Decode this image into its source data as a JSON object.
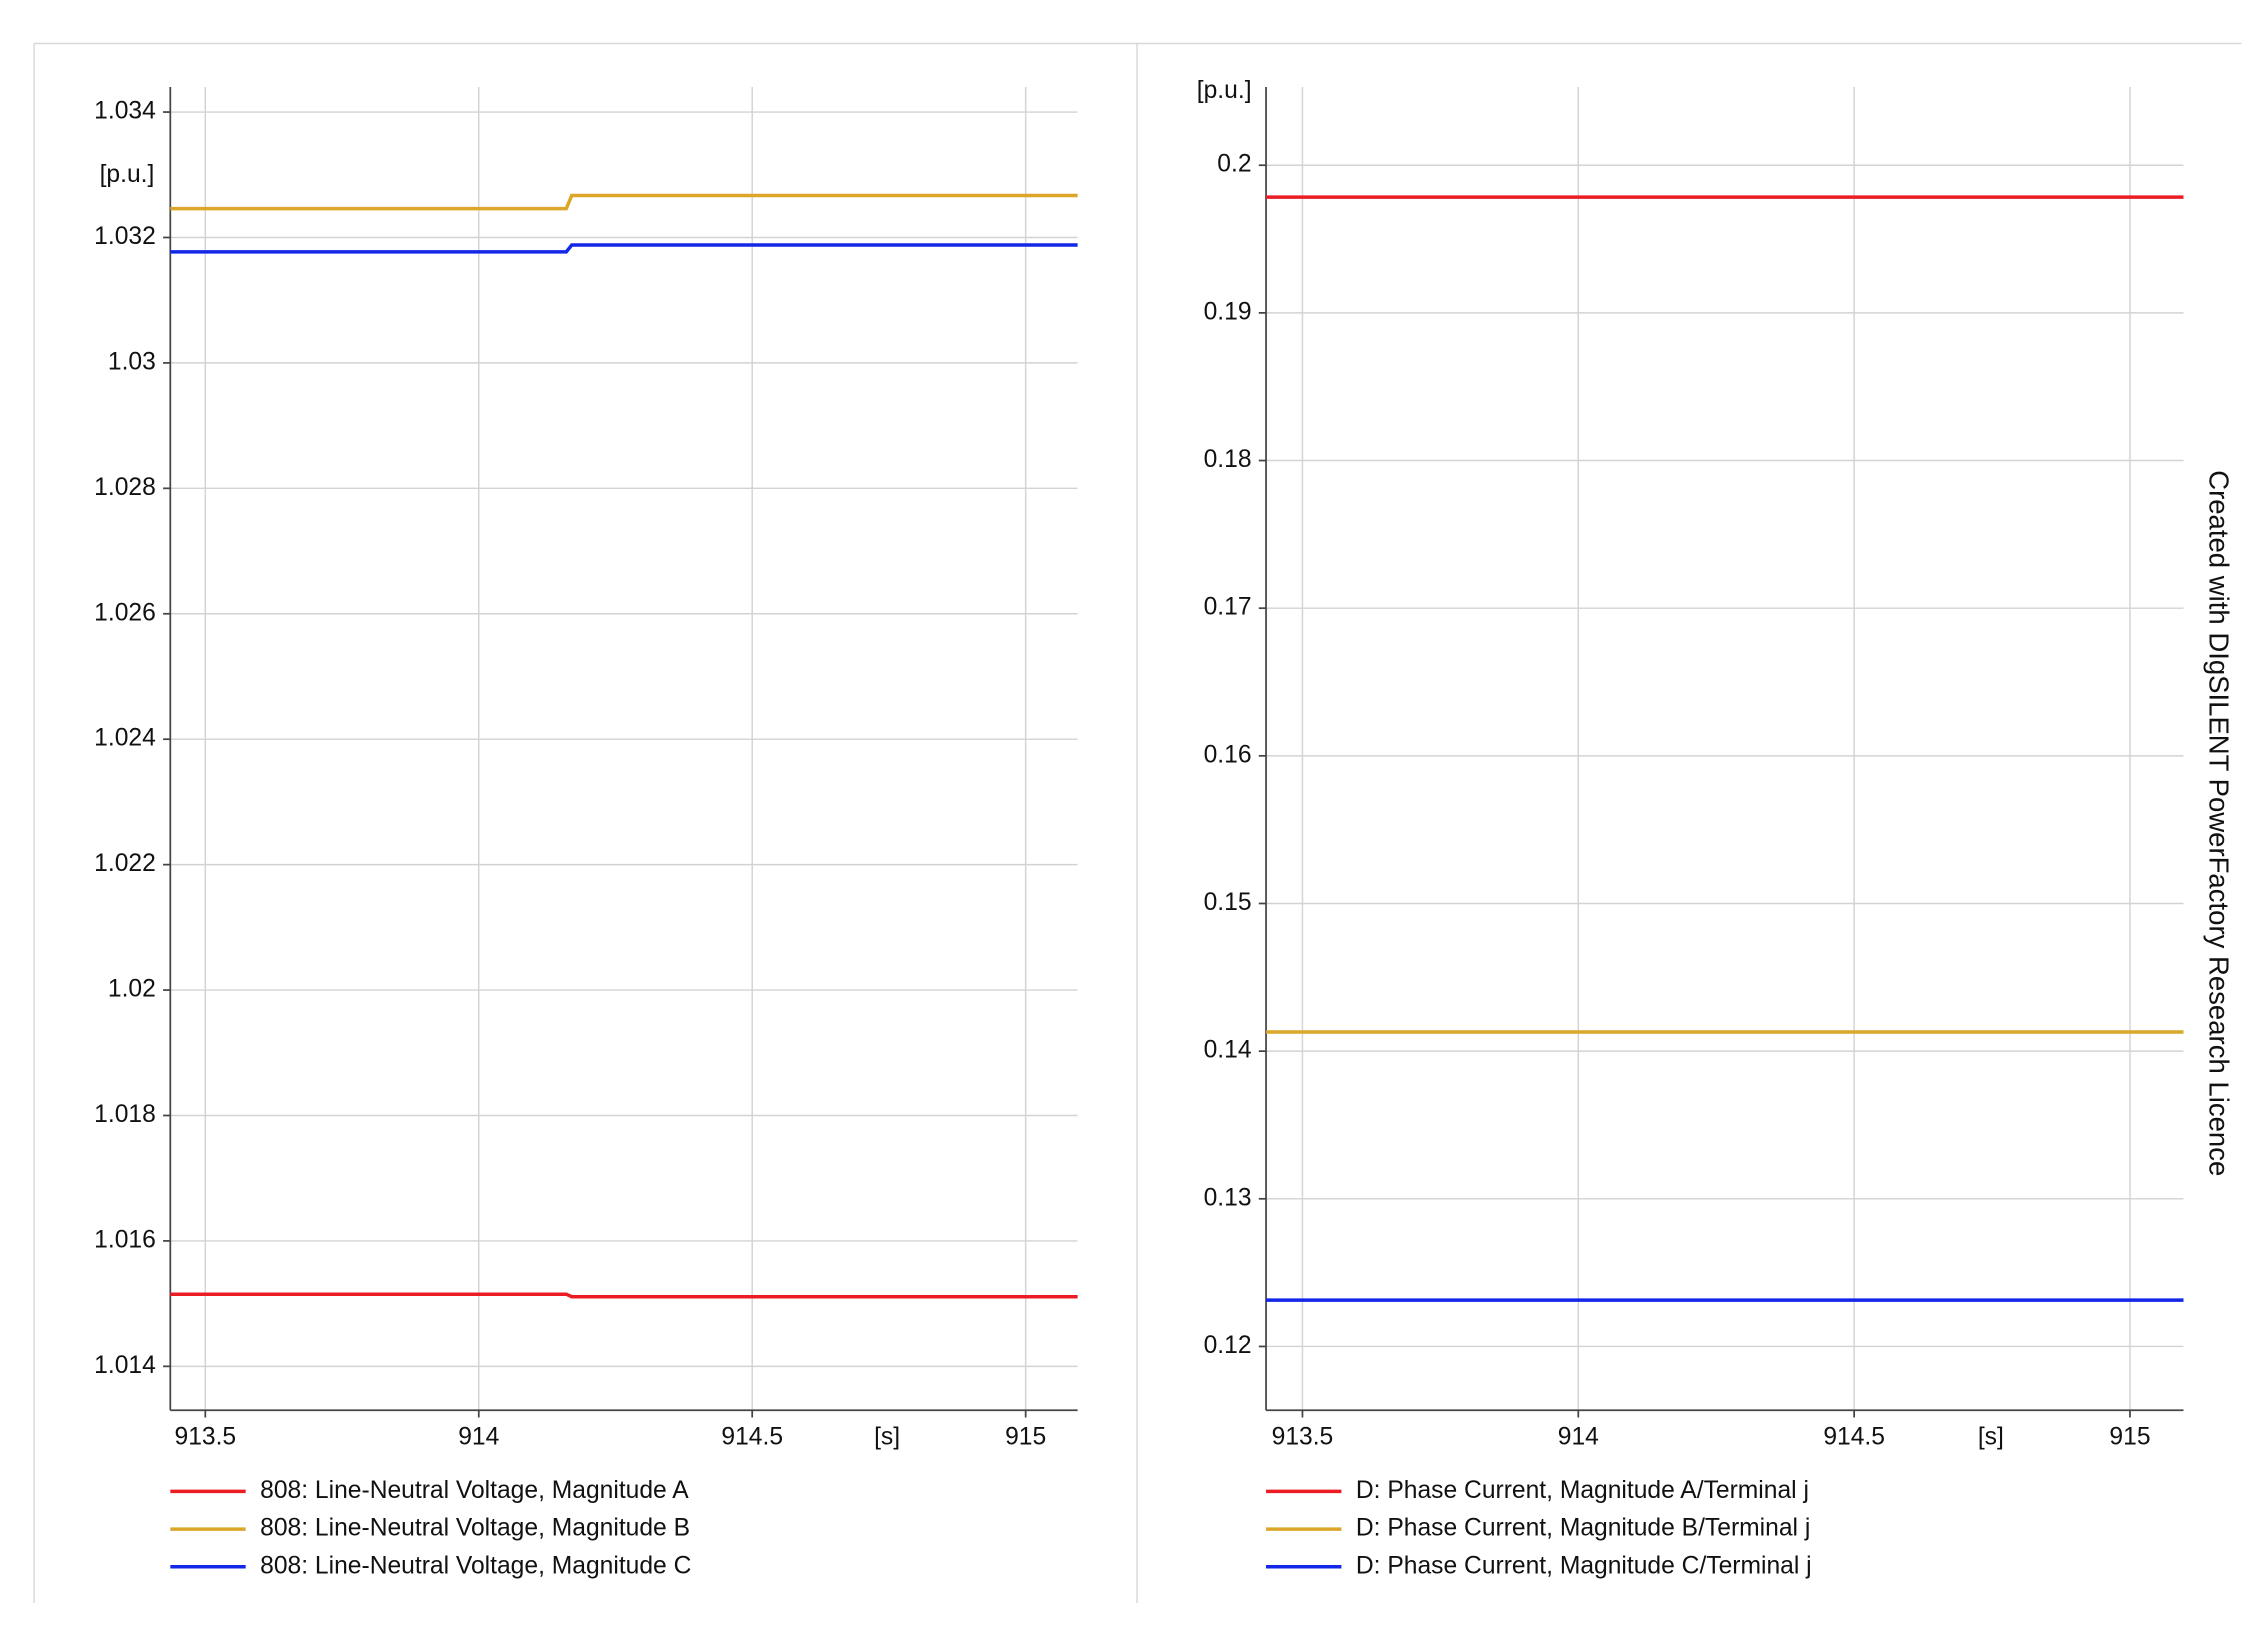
{
  "watermark": "Created with DIgSILENT PowerFactory Research Licence",
  "chart_data": [
    {
      "type": "line",
      "ylabel": "[p.u.]",
      "xlabel": "[s]",
      "x": [
        913.436,
        914.16,
        914.17,
        915.095
      ],
      "xlim": [
        913.436,
        915.095
      ],
      "xticks": [
        913.5,
        914,
        914.5,
        915
      ],
      "ylim": [
        1.0133,
        1.0344
      ],
      "yticks": [
        1.014,
        1.016,
        1.018,
        1.02,
        1.022,
        1.024,
        1.026,
        1.028,
        1.03,
        1.032,
        1.034
      ],
      "grid": true,
      "legend": "bottom",
      "series": [
        {
          "name": "808: Line-Neutral Voltage, Magnitude A",
          "color": "#ec1c24",
          "values": [
            1.01515,
            1.01515,
            1.01511,
            1.01511
          ]
        },
        {
          "name": "808: Line-Neutral Voltage, Magnitude B",
          "color": "#dba629",
          "values": [
            1.03246,
            1.03246,
            1.03267,
            1.03267
          ]
        },
        {
          "name": "808: Line-Neutral Voltage, Magnitude C",
          "color": "#1327e8",
          "values": [
            1.03177,
            1.03177,
            1.03188,
            1.03188
          ]
        }
      ]
    },
    {
      "type": "line",
      "ylabel": "[p.u.]",
      "xlabel": "[s]",
      "x": [
        913.434,
        915.097
      ],
      "xlim": [
        913.434,
        915.097
      ],
      "xticks": [
        913.5,
        914,
        914.5,
        915
      ],
      "ylim": [
        0.11568,
        0.2053
      ],
      "yticks": [
        0.12,
        0.13,
        0.14,
        0.15,
        0.16,
        0.17,
        0.18,
        0.19,
        0.2
      ],
      "grid": true,
      "legend": "bottom",
      "series": [
        {
          "name": "D: Phase Current, Magnitude A/Terminal j",
          "color": "#ec1c24",
          "values": [
            0.19784,
            0.19784
          ]
        },
        {
          "name": "D: Phase Current, Magnitude B/Terminal j",
          "color": "#dba629",
          "values": [
            0.1413,
            0.1413
          ]
        },
        {
          "name": "D: Phase Current, Magnitude C/Terminal j",
          "color": "#1327e8",
          "values": [
            0.12314,
            0.12314
          ]
        }
      ]
    }
  ]
}
